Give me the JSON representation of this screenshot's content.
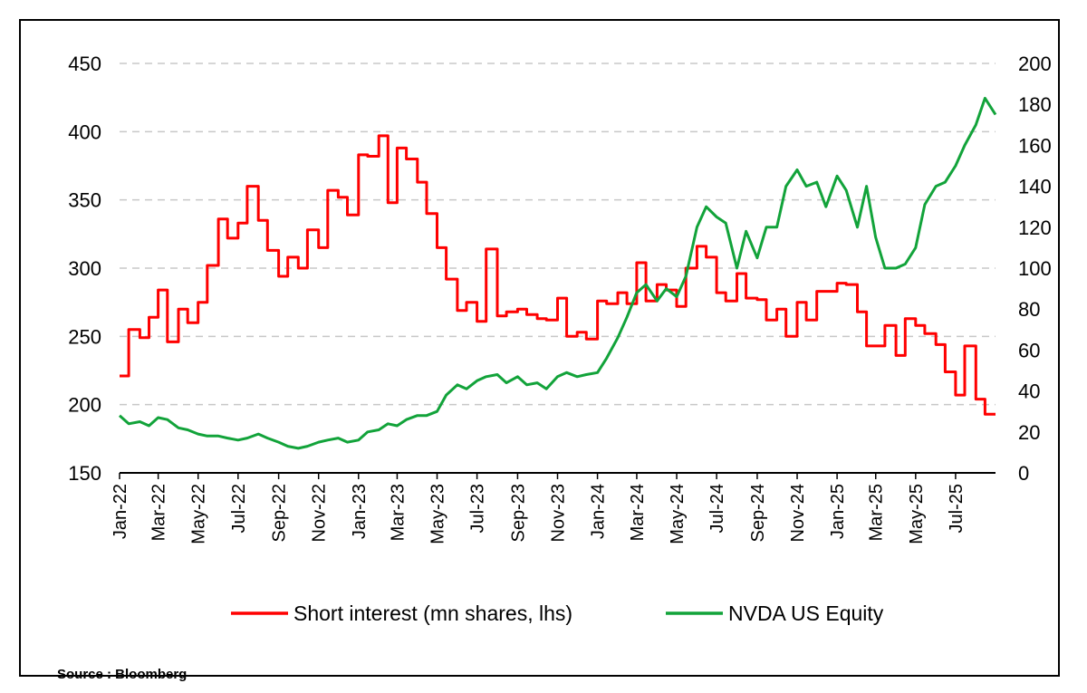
{
  "source": "Source : Bloomberg",
  "chart_data": {
    "type": "line",
    "title": "",
    "grid": "horizontal dashed",
    "legend_position": "bottom",
    "left_axis": {
      "min": 150,
      "max": 450,
      "ticks": [
        "150",
        "200",
        "250",
        "300",
        "350",
        "400",
        "450"
      ]
    },
    "right_axis": {
      "min": 0,
      "max": 200,
      "ticks": [
        "0",
        "20",
        "40",
        "60",
        "80",
        "100",
        "120",
        "140",
        "160",
        "180",
        "200"
      ]
    },
    "x_range": [
      "2022-01-01",
      "2025-08-31"
    ],
    "x_ticks": [
      "Jan-22",
      "Mar-22",
      "May-22",
      "Jul-22",
      "Sep-22",
      "Nov-22",
      "Jan-23",
      "Mar-23",
      "May-23",
      "Jul-23",
      "Sep-23",
      "Nov-23",
      "Jan-24",
      "Mar-24",
      "May-24",
      "Jul-24",
      "Sep-24",
      "Nov-24",
      "Jan-25",
      "Mar-25",
      "May-25",
      "Jul-25"
    ],
    "x_tick_dates": [
      "2022-01-01",
      "2022-03-01",
      "2022-05-01",
      "2022-07-01",
      "2022-09-01",
      "2022-11-01",
      "2023-01-01",
      "2023-03-01",
      "2023-05-01",
      "2023-07-01",
      "2023-09-01",
      "2023-11-01",
      "2024-01-01",
      "2024-03-01",
      "2024-05-01",
      "2024-07-01",
      "2024-09-01",
      "2024-11-01",
      "2025-01-01",
      "2025-03-01",
      "2025-05-01",
      "2025-07-01"
    ],
    "series": [
      {
        "name": "Short interest (mn shares, lhs)",
        "axis": "left",
        "color": "#ff0000",
        "line_shape": "step",
        "x": [
          "2022-01-01",
          "2022-01-15",
          "2022-02-01",
          "2022-02-15",
          "2022-03-01",
          "2022-03-15",
          "2022-04-01",
          "2022-04-15",
          "2022-05-01",
          "2022-05-15",
          "2022-06-01",
          "2022-06-15",
          "2022-07-01",
          "2022-07-15",
          "2022-08-01",
          "2022-08-15",
          "2022-09-01",
          "2022-09-15",
          "2022-10-01",
          "2022-10-15",
          "2022-11-01",
          "2022-11-15",
          "2022-12-01",
          "2022-12-15",
          "2023-01-01",
          "2023-01-15",
          "2023-02-01",
          "2023-02-15",
          "2023-03-01",
          "2023-03-15",
          "2023-04-01",
          "2023-04-15",
          "2023-05-01",
          "2023-05-15",
          "2023-06-01",
          "2023-06-15",
          "2023-07-01",
          "2023-07-15",
          "2023-08-01",
          "2023-08-15",
          "2023-09-01",
          "2023-09-15",
          "2023-10-01",
          "2023-10-15",
          "2023-11-01",
          "2023-11-15",
          "2023-12-01",
          "2023-12-15",
          "2024-01-01",
          "2024-01-15",
          "2024-02-01",
          "2024-02-15",
          "2024-03-01",
          "2024-03-15",
          "2024-04-01",
          "2024-04-15",
          "2024-05-01",
          "2024-05-15",
          "2024-06-01",
          "2024-06-15",
          "2024-07-01",
          "2024-07-15",
          "2024-08-01",
          "2024-08-15",
          "2024-09-01",
          "2024-09-15",
          "2024-10-01",
          "2024-10-15",
          "2024-11-01",
          "2024-11-15",
          "2024-12-01",
          "2024-12-15",
          "2025-01-01",
          "2025-01-15",
          "2025-02-01",
          "2025-02-15",
          "2025-03-01",
          "2025-03-15",
          "2025-04-01",
          "2025-04-15",
          "2025-05-01",
          "2025-05-15",
          "2025-06-01",
          "2025-06-15",
          "2025-07-01",
          "2025-07-15",
          "2025-08-01",
          "2025-08-15",
          "2025-08-31"
        ],
        "values": [
          221,
          255,
          249,
          264,
          284,
          246,
          270,
          260,
          275,
          302,
          336,
          322,
          333,
          360,
          335,
          313,
          294,
          308,
          300,
          328,
          315,
          357,
          352,
          339,
          383,
          382,
          397,
          348,
          388,
          380,
          363,
          340,
          315,
          292,
          269,
          275,
          261,
          314,
          265,
          268,
          270,
          266,
          263,
          262,
          278,
          250,
          253,
          248,
          276,
          274,
          282,
          274,
          304,
          276,
          288,
          284,
          272,
          300,
          316,
          308,
          282,
          276,
          296,
          278,
          277,
          262,
          270,
          250,
          275,
          262,
          283,
          283,
          289,
          288,
          268,
          243,
          243,
          258,
          236,
          263,
          258,
          252,
          244,
          224,
          207,
          243,
          204,
          193,
          193
        ]
      },
      {
        "name": "NVDA US Equity",
        "axis": "right",
        "color": "#12a33a",
        "line_shape": "linear",
        "x": [
          "2022-01-01",
          "2022-01-15",
          "2022-02-01",
          "2022-02-15",
          "2022-03-01",
          "2022-03-15",
          "2022-04-01",
          "2022-04-15",
          "2022-05-01",
          "2022-05-15",
          "2022-06-01",
          "2022-06-15",
          "2022-07-01",
          "2022-07-15",
          "2022-08-01",
          "2022-08-15",
          "2022-09-01",
          "2022-09-15",
          "2022-10-01",
          "2022-10-15",
          "2022-11-01",
          "2022-11-15",
          "2022-12-01",
          "2022-12-15",
          "2023-01-01",
          "2023-01-15",
          "2023-02-01",
          "2023-02-15",
          "2023-03-01",
          "2023-03-15",
          "2023-04-01",
          "2023-04-15",
          "2023-05-01",
          "2023-05-15",
          "2023-06-01",
          "2023-06-15",
          "2023-07-01",
          "2023-07-15",
          "2023-08-01",
          "2023-08-15",
          "2023-09-01",
          "2023-09-15",
          "2023-10-01",
          "2023-10-15",
          "2023-11-01",
          "2023-11-15",
          "2023-12-01",
          "2023-12-15",
          "2024-01-01",
          "2024-01-15",
          "2024-02-01",
          "2024-02-15",
          "2024-03-01",
          "2024-03-15",
          "2024-04-01",
          "2024-04-15",
          "2024-05-01",
          "2024-05-15",
          "2024-06-01",
          "2024-06-15",
          "2024-07-01",
          "2024-07-15",
          "2024-08-01",
          "2024-08-15",
          "2024-09-01",
          "2024-09-15",
          "2024-10-01",
          "2024-10-15",
          "2024-11-01",
          "2024-11-15",
          "2024-12-01",
          "2024-12-15",
          "2025-01-01",
          "2025-01-15",
          "2025-02-01",
          "2025-02-15",
          "2025-03-01",
          "2025-03-15",
          "2025-04-01",
          "2025-04-15",
          "2025-05-01",
          "2025-05-15",
          "2025-06-01",
          "2025-06-15",
          "2025-07-01",
          "2025-07-15",
          "2025-08-01",
          "2025-08-15",
          "2025-08-31"
        ],
        "values": [
          28,
          24,
          25,
          23,
          27,
          26,
          22,
          21,
          19,
          18,
          18,
          17,
          16,
          17,
          19,
          17,
          15,
          13,
          12,
          13,
          15,
          16,
          17,
          15,
          16,
          20,
          21,
          24,
          23,
          26,
          28,
          28,
          30,
          38,
          43,
          41,
          45,
          47,
          48,
          44,
          47,
          43,
          44,
          41,
          47,
          49,
          47,
          48,
          49,
          56,
          66,
          76,
          88,
          92,
          84,
          90,
          86,
          96,
          120,
          130,
          125,
          122,
          100,
          118,
          105,
          120,
          120,
          140,
          148,
          140,
          142,
          130,
          145,
          138,
          120,
          140,
          115,
          100,
          100,
          102,
          110,
          131,
          140,
          142,
          150,
          160,
          170,
          183,
          175
        ]
      }
    ]
  },
  "legend": [
    {
      "label": "Short interest (mn shares, lhs)",
      "color": "#ff0000"
    },
    {
      "label": "NVDA US Equity",
      "color": "#12a33a"
    }
  ]
}
